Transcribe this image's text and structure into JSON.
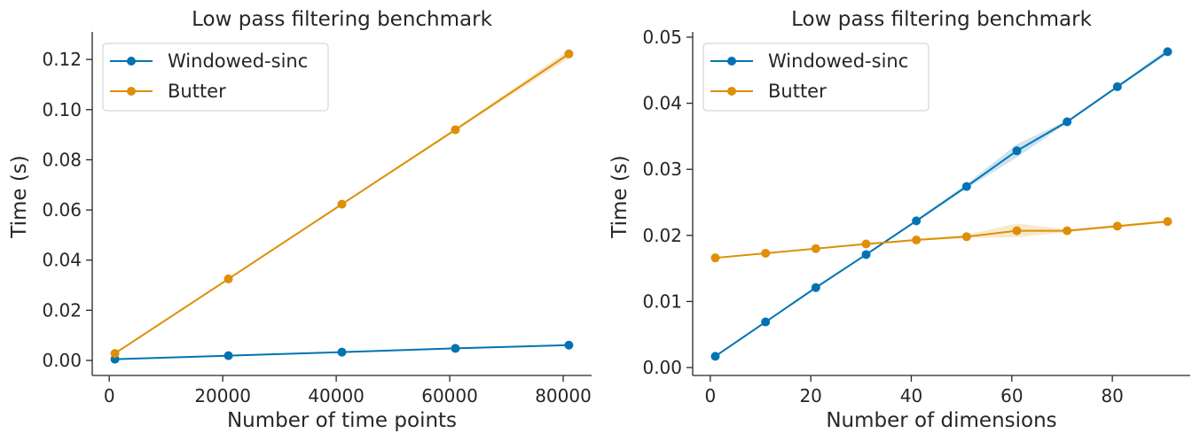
{
  "chart_data": [
    {
      "type": "line",
      "title": "Low pass filtering benchmark",
      "xlabel": "Number of time points",
      "ylabel": "Time (s)",
      "xlim": [
        -3000,
        85000
      ],
      "ylim": [
        -0.006,
        0.131
      ],
      "xticks": [
        0,
        20000,
        40000,
        60000,
        80000
      ],
      "xtick_labels": [
        "0",
        "20000",
        "40000",
        "60000",
        "80000"
      ],
      "yticks": [
        0.0,
        0.02,
        0.04,
        0.06,
        0.08,
        0.1,
        0.12
      ],
      "ytick_labels": [
        "0.00",
        "0.02",
        "0.04",
        "0.06",
        "0.08",
        "0.10",
        "0.12"
      ],
      "legend_position": "top-left",
      "series": [
        {
          "name": "Windowed-sinc",
          "color": "#0173b2",
          "x": [
            1000,
            21000,
            41000,
            61000,
            81000
          ],
          "y": [
            0.0005,
            0.0019,
            0.0033,
            0.0048,
            0.0061
          ],
          "ci": [
            [
              0.0004,
              0.0006
            ],
            [
              0.0018,
              0.002
            ],
            [
              0.0032,
              0.0034
            ],
            [
              0.0047,
              0.0049
            ],
            [
              0.006,
              0.0062
            ]
          ]
        },
        {
          "name": "Butter",
          "color": "#de8f05",
          "x": [
            1000,
            21000,
            41000,
            61000,
            81000
          ],
          "y": [
            0.0028,
            0.0325,
            0.0623,
            0.092,
            0.1222
          ],
          "ci": [
            [
              0.0026,
              0.003
            ],
            [
              0.0321,
              0.0329
            ],
            [
              0.0619,
              0.0627
            ],
            [
              0.0915,
              0.0925
            ],
            [
              0.1205,
              0.1238
            ]
          ]
        }
      ]
    },
    {
      "type": "line",
      "title": "Low pass filtering benchmark",
      "xlabel": "Number of dimensions",
      "ylabel": "Time (s)",
      "xlim": [
        -3.5,
        95.5
      ],
      "ylim": [
        -0.0012,
        0.0508
      ],
      "xticks": [
        0,
        20,
        40,
        60,
        80
      ],
      "xtick_labels": [
        "0",
        "20",
        "40",
        "60",
        "80"
      ],
      "yticks": [
        0.0,
        0.01,
        0.02,
        0.03,
        0.04,
        0.05
      ],
      "ytick_labels": [
        "0.00",
        "0.01",
        "0.02",
        "0.03",
        "0.04",
        "0.05"
      ],
      "legend_position": "top-left",
      "series": [
        {
          "name": "Windowed-sinc",
          "color": "#0173b2",
          "x": [
            1,
            11,
            21,
            31,
            41,
            51,
            61,
            71,
            81,
            91
          ],
          "y": [
            0.0017,
            0.0069,
            0.0121,
            0.0171,
            0.0222,
            0.0274,
            0.0328,
            0.0372,
            0.0425,
            0.0478
          ],
          "ci": [
            [
              0.0016,
              0.0018
            ],
            [
              0.0068,
              0.007
            ],
            [
              0.012,
              0.0122
            ],
            [
              0.017,
              0.0172
            ],
            [
              0.022,
              0.0224
            ],
            [
              0.0271,
              0.0278
            ],
            [
              0.0318,
              0.0338
            ],
            [
              0.037,
              0.0374
            ],
            [
              0.0423,
              0.0427
            ],
            [
              0.0474,
              0.0482
            ]
          ]
        },
        {
          "name": "Butter",
          "color": "#de8f05",
          "x": [
            1,
            11,
            21,
            31,
            41,
            51,
            61,
            71,
            81,
            91
          ],
          "y": [
            0.0166,
            0.0173,
            0.018,
            0.0187,
            0.0193,
            0.0198,
            0.0207,
            0.0207,
            0.0214,
            0.0221
          ],
          "ci": [
            [
              0.0165,
              0.0167
            ],
            [
              0.0172,
              0.0174
            ],
            [
              0.0179,
              0.0181
            ],
            [
              0.0186,
              0.0188
            ],
            [
              0.0192,
              0.0195
            ],
            [
              0.0196,
              0.0201
            ],
            [
              0.0197,
              0.0218
            ],
            [
              0.0205,
              0.0209
            ],
            [
              0.0212,
              0.0216
            ],
            [
              0.0219,
              0.0223
            ]
          ]
        }
      ]
    }
  ]
}
